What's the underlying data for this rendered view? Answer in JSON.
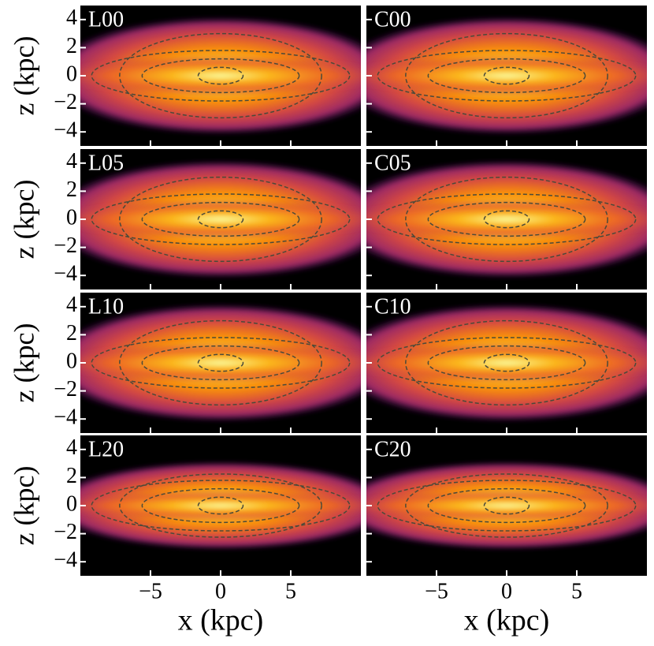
{
  "chart_data": {
    "type": "density",
    "xlabel": "x (kpc)",
    "ylabel": "z (kpc)",
    "xlim": [
      -10,
      10
    ],
    "ylim": [
      -5,
      5
    ],
    "xticks": [
      {
        "value": -5,
        "label": "−5"
      },
      0,
      5
    ],
    "yticks": [
      {
        "value": -4,
        "label": "−4"
      },
      {
        "value": -2,
        "label": "−2"
      },
      0,
      2,
      4
    ],
    "panels": [
      {
        "label": "L00"
      },
      {
        "label": "C00"
      },
      {
        "label": "L05"
      },
      {
        "label": "C05"
      },
      {
        "label": "L10"
      },
      {
        "label": "C10"
      },
      {
        "label": "L20"
      },
      {
        "label": "C20"
      }
    ]
  }
}
